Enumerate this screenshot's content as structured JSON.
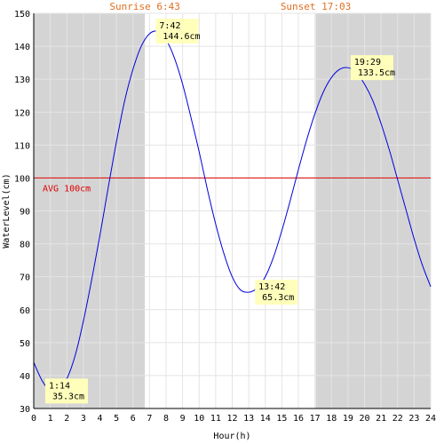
{
  "chart_data": {
    "type": "line",
    "xlabel": "Hour(h)",
    "ylabel": "WaterLevel(cm)",
    "xlim": [
      0,
      24
    ],
    "ylim": [
      30,
      150
    ],
    "x_ticks": [
      0,
      1,
      2,
      3,
      4,
      5,
      6,
      7,
      8,
      9,
      10,
      11,
      12,
      13,
      14,
      15,
      16,
      17,
      18,
      19,
      20,
      21,
      22,
      23,
      24
    ],
    "y_ticks": [
      30,
      40,
      50,
      60,
      70,
      80,
      90,
      100,
      110,
      120,
      130,
      140,
      150
    ],
    "grid": true,
    "sunrise_label": "Sunrise 6:43",
    "sunset_label": "Sunset 17:03",
    "night_shading": [
      [
        0,
        6.717
      ],
      [
        17.05,
        24
      ]
    ],
    "avg_value": 100,
    "avg_label": "AVG 100cm",
    "colors": {
      "line": "#0000dd",
      "avg": "#dd0000",
      "night": "#d4d4d4",
      "annotation_bg": "#ffffbb",
      "sun_text": "#e07020",
      "grid": "#e4e4e4"
    },
    "series": [
      {
        "x": [
          0,
          0.5,
          1,
          1.5,
          2,
          2.5,
          3,
          3.5,
          4,
          4.5,
          5,
          5.5,
          6,
          6.5,
          7,
          7.5,
          8,
          8.5,
          9,
          9.5,
          10,
          10.5,
          11,
          11.5,
          12,
          12.5,
          13,
          13.5,
          14,
          14.5,
          15,
          15.5,
          16,
          16.5,
          17,
          17.5,
          18,
          18.5,
          19,
          19.5,
          20,
          20.5,
          21,
          21.5,
          22,
          22.5,
          23,
          23.5,
          24
        ],
        "y": [
          44.0,
          38.5,
          35.4,
          35.6,
          39.0,
          46.0,
          56.5,
          69.0,
          82.5,
          97.0,
          111.0,
          123.5,
          133.0,
          140.0,
          143.8,
          144.5,
          142.0,
          136.5,
          128.5,
          118.5,
          108.0,
          96.5,
          86.0,
          77.0,
          70.0,
          66.0,
          65.3,
          66.5,
          70.0,
          76.0,
          84.0,
          93.0,
          102.5,
          111.5,
          119.5,
          126.0,
          130.5,
          133.0,
          133.5,
          132.0,
          128.5,
          123.5,
          116.5,
          108.5,
          99.5,
          90.5,
          81.5,
          73.5,
          67.0
        ]
      }
    ],
    "annotations": [
      {
        "time": "1:14",
        "value": "35.3cm",
        "x": 1.233,
        "y": 35.3
      },
      {
        "time": "7:42",
        "value": "144.6cm",
        "x": 7.7,
        "y": 144.6
      },
      {
        "time": "13:42",
        "value": "65.3cm",
        "x": 13.7,
        "y": 65.3
      },
      {
        "time": "19:29",
        "value": "133.5cm",
        "x": 19.483,
        "y": 133.5
      }
    ]
  }
}
